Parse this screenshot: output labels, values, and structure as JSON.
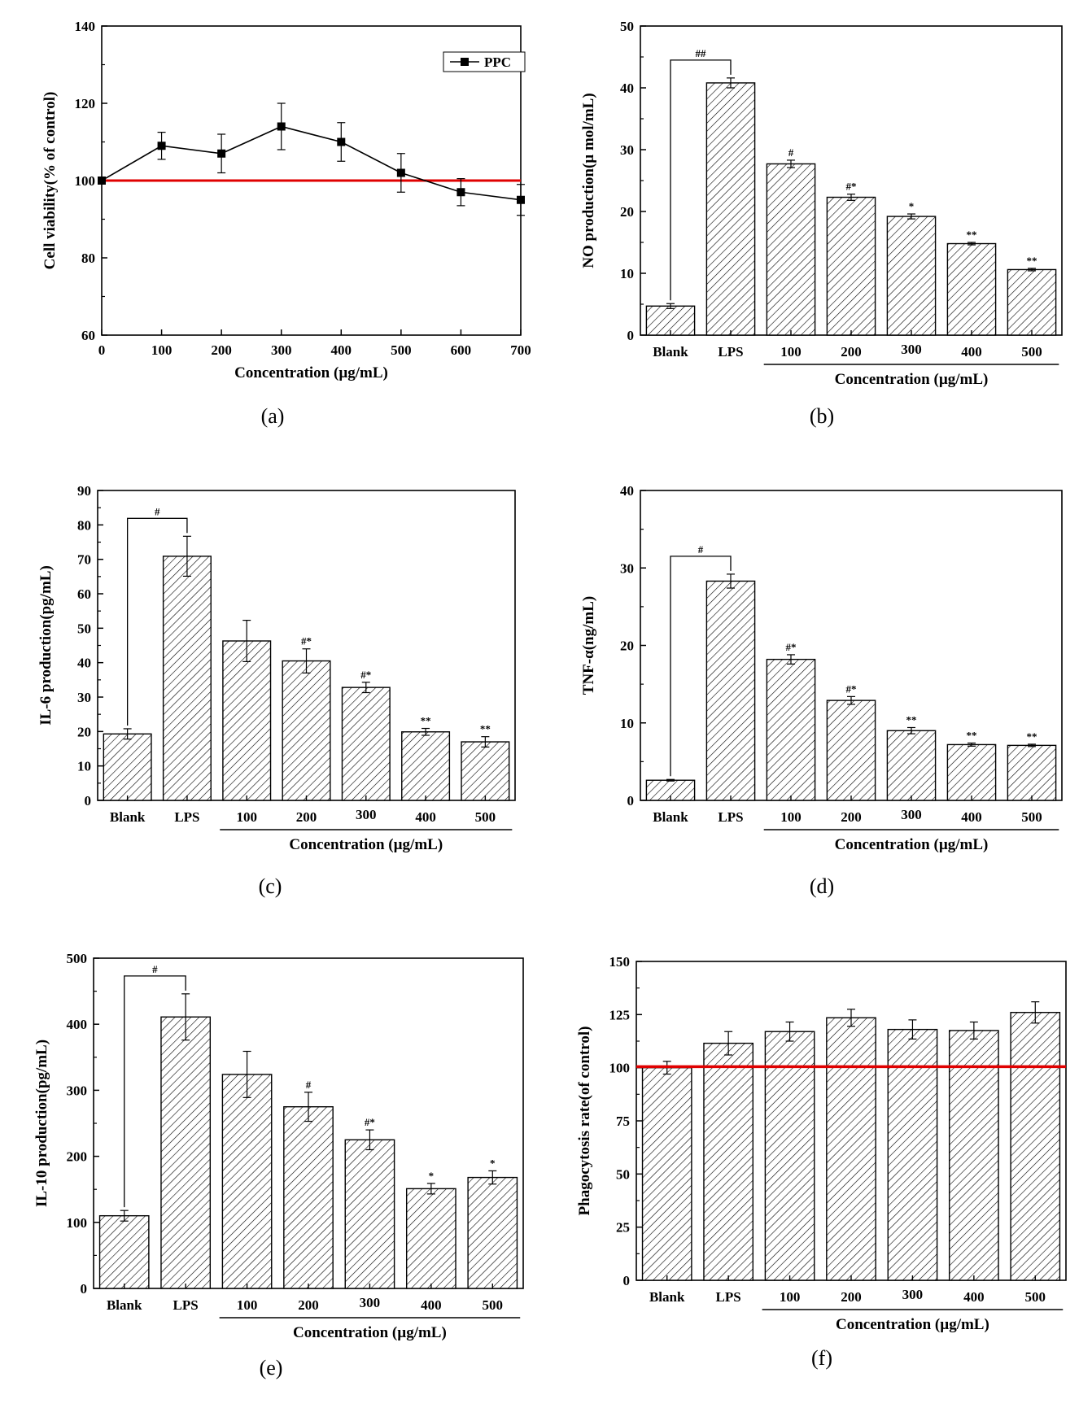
{
  "chart_data": [
    {
      "id": "a",
      "type": "line",
      "panel_label": "(a)",
      "ylabel": "Cell viability(% of control)",
      "xlabel": "Concentration (µg/mL)",
      "ylim": [
        60,
        140
      ],
      "yticks": [
        60,
        80,
        100,
        120,
        140
      ],
      "xlim": [
        0,
        700
      ],
      "xticks": [
        0,
        100,
        200,
        300,
        400,
        500,
        600,
        700
      ],
      "series": [
        {
          "name": "PPC",
          "x": [
            0,
            100,
            200,
            300,
            400,
            500,
            600,
            700
          ],
          "values": [
            100,
            109,
            107,
            114,
            110,
            102,
            97,
            95
          ],
          "errors": [
            0,
            3.5,
            5,
            6,
            5,
            5,
            3.5,
            4
          ]
        }
      ],
      "reference_line": 100,
      "reference_color": "#e00000",
      "legend": "top-right"
    },
    {
      "id": "b",
      "type": "bar",
      "panel_label": "(b)",
      "ylabel": "NO production(µ mol/mL)",
      "xlabel": "Concentration (µg/mL)",
      "ylim": [
        0,
        50
      ],
      "yticks": [
        0,
        10,
        20,
        30,
        40,
        50
      ],
      "categories": [
        "Blank",
        "LPS",
        "100",
        "200",
        "300",
        "400",
        "500"
      ],
      "values": [
        4.7,
        40.8,
        27.7,
        22.3,
        19.2,
        14.8,
        10.6
      ],
      "errors": [
        0.4,
        0.8,
        0.6,
        0.5,
        0.4,
        0.2,
        0.2
      ],
      "significance": [
        "",
        "",
        "#",
        "#*",
        "*",
        "**",
        "**"
      ],
      "bracket_label": "##"
    },
    {
      "id": "c",
      "type": "bar",
      "panel_label": "(c)",
      "ylabel": "IL-6 production(pg/mL)",
      "xlabel": "Concentration (µg/mL)",
      "ylim": [
        0,
        90
      ],
      "yticks": [
        0,
        10,
        20,
        30,
        40,
        50,
        60,
        70,
        80,
        90
      ],
      "categories": [
        "Blank",
        "LPS",
        "100",
        "200",
        "300",
        "400",
        "500"
      ],
      "values": [
        19.3,
        70.9,
        46.3,
        40.5,
        32.8,
        19.9,
        17.0
      ],
      "errors": [
        1.5,
        5.8,
        6,
        3.5,
        1.5,
        1.0,
        1.5
      ],
      "significance": [
        "",
        "",
        "",
        "#*",
        "#*",
        "**",
        "**"
      ],
      "bracket_label": "#"
    },
    {
      "id": "d",
      "type": "bar",
      "panel_label": "(d)",
      "ylabel": "TNF-α(ng/mL)",
      "xlabel": "Concentration (µg/mL)",
      "ylim": [
        0,
        40
      ],
      "yticks": [
        0,
        10,
        20,
        30,
        40
      ],
      "categories": [
        "Blank",
        "LPS",
        "100",
        "200",
        "300",
        "400",
        "500"
      ],
      "values": [
        2.6,
        28.3,
        18.2,
        12.9,
        9.0,
        7.2,
        7.1
      ],
      "errors": [
        0.1,
        0.9,
        0.6,
        0.5,
        0.4,
        0.2,
        0.15
      ],
      "significance": [
        "",
        "",
        "#*",
        "#*",
        "**",
        "**",
        "**"
      ],
      "bracket_label": "#"
    },
    {
      "id": "e",
      "type": "bar",
      "panel_label": "(e)",
      "ylabel": "IL-10 production(pg/mL)",
      "xlabel": "Concentration (µg/mL)",
      "ylim": [
        0,
        500
      ],
      "yticks": [
        0,
        100,
        200,
        300,
        400,
        500
      ],
      "categories": [
        "Blank",
        "LPS",
        "100",
        "200",
        "300",
        "400",
        "500"
      ],
      "values": [
        110,
        411,
        324,
        275,
        225,
        151,
        168
      ],
      "errors": [
        8,
        35,
        35,
        22,
        15,
        8,
        10
      ],
      "significance": [
        "",
        "",
        "",
        "#",
        "#*",
        "*",
        "*"
      ],
      "bracket_label": "#"
    },
    {
      "id": "f",
      "type": "bar",
      "panel_label": "(f)",
      "ylabel": "Phagocytosis rate(of control)",
      "xlabel": "Concentration (µg/mL)",
      "ylim": [
        0,
        150
      ],
      "yticks": [
        0,
        25,
        50,
        75,
        100,
        125,
        150
      ],
      "categories": [
        "Blank",
        "LPS",
        "100",
        "200",
        "300",
        "400",
        "500"
      ],
      "values": [
        100,
        111.5,
        117,
        123.5,
        118,
        117.5,
        126
      ],
      "errors": [
        3,
        5.5,
        4.5,
        4,
        4.5,
        4,
        5
      ],
      "significance": [
        "",
        "",
        "",
        "",
        "",
        "",
        ""
      ],
      "reference_line": 100.5,
      "reference_color": "#e00000"
    }
  ]
}
